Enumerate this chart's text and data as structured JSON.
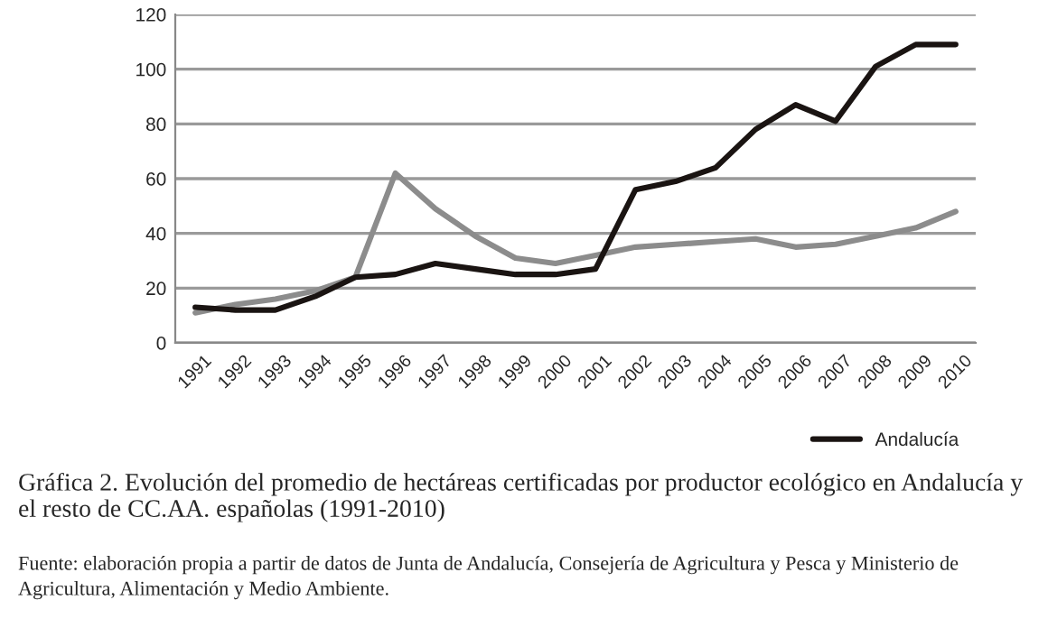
{
  "chart_data": {
    "type": "line",
    "title": "Gráfica 2. Evolución del promedio de hectáreas certificadas por productor ecológico en Andalucía y el resto de CC.AA. españolas (1991-2010)",
    "annotations": [
      "Fuente: elaboración propia a partir de datos de Junta de Andalucía, Consejería de Agricultura y Pesca y Ministerio de Agricultura, Alimentación y Medio Ambiente."
    ],
    "categories": [
      "1991",
      "1992",
      "1993",
      "1994",
      "1995",
      "1996",
      "1997",
      "1998",
      "1999",
      "2000",
      "2001",
      "2002",
      "2003",
      "2004",
      "2005",
      "2006",
      "2007",
      "2008",
      "2009",
      "2010"
    ],
    "series": [
      {
        "name": "Andalucía",
        "color": "#1a1412",
        "values": [
          13,
          12,
          12,
          17,
          24,
          25,
          29,
          27,
          25,
          25,
          27,
          56,
          59,
          64,
          78,
          87,
          81,
          101,
          109,
          109
        ]
      },
      {
        "color": "#8c8c8c",
        "values": [
          11,
          14,
          16,
          19,
          24,
          62,
          49,
          39,
          31,
          29,
          32,
          35,
          36,
          37,
          38,
          35,
          36,
          39,
          42,
          48
        ]
      }
    ],
    "ylim": [
      0,
      120
    ],
    "yticks": [
      0,
      20,
      40,
      60,
      80,
      100,
      120
    ],
    "grid": "y",
    "legend": "bottom right",
    "line_style": "solid",
    "marker": "none"
  }
}
